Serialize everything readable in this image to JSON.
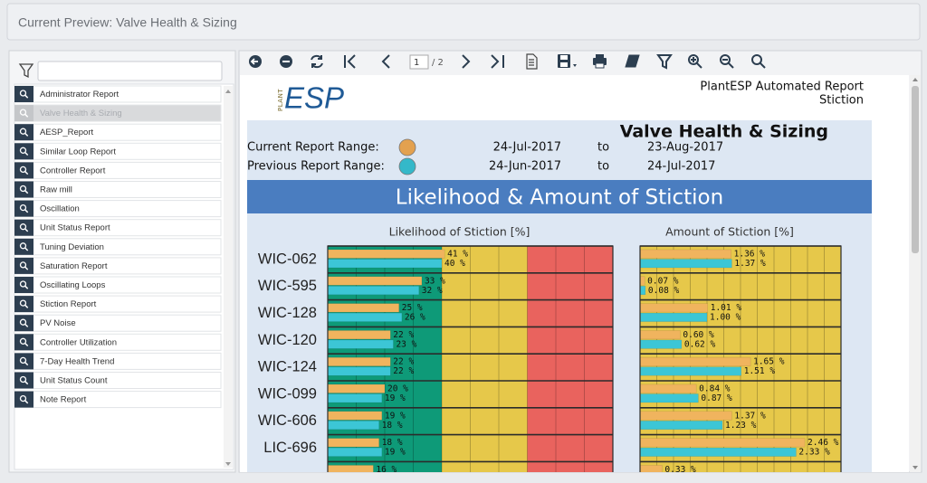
{
  "header": {
    "title": "Current Preview: Valve Health & Sizing"
  },
  "sidebar": {
    "selected": 1,
    "items": [
      "Administrator Report",
      "Valve Health & Sizing",
      "AESP_Report",
      "Similar Loop Report",
      "Controller Report",
      "Raw mill",
      "Oscillation",
      "Unit Status Report",
      "Tuning Deviation",
      "Saturation Report",
      "Oscillating Loops",
      "Stiction Report",
      "PV Noise",
      "Controller Utilization",
      "7-Day Health Trend",
      "Unit Status Count",
      "Note Report"
    ]
  },
  "toolbar": {
    "page": "1",
    "page_total": "/ 2"
  },
  "report": {
    "logo_small": "PLANT",
    "logo": "ESP",
    "header_lines": [
      "PlantESP Automated Report",
      "Stiction"
    ],
    "title": "Valve Health & Sizing",
    "ranges": [
      {
        "label": "Current Report Range:",
        "color": "#e3a14f",
        "start": "24-Jul-2017",
        "to": "to",
        "end": "23-Aug-2017"
      },
      {
        "label": "Previous Report Range:",
        "color": "#34b8c9",
        "start": "24-Jun-2017",
        "to": "to",
        "end": "24-Jul-2017"
      }
    ],
    "section_title": "Likelihood & Amount of Stiction"
  },
  "chart_data": [
    {
      "type": "bar",
      "orientation": "horizontal",
      "title": "Likelihood of Stiction [%]",
      "categories": [
        "WIC-062",
        "WIC-595",
        "WIC-128",
        "WIC-120",
        "WIC-124",
        "WIC-099",
        "WIC-606",
        "LIC-696",
        null
      ],
      "series": [
        {
          "color": "#f0b45e",
          "values": [
            41,
            33,
            25,
            22,
            22,
            20,
            19,
            18,
            16
          ],
          "value_labels": [
            "41 %",
            "33 %",
            "25 %",
            "22 %",
            "22 %",
            "20 %",
            "19 %",
            "18 %",
            "16 %"
          ]
        },
        {
          "color": "#3cc6d6",
          "values": [
            40,
            32,
            26,
            23,
            22,
            19,
            18,
            19,
            null
          ],
          "value_labels": [
            "40 %",
            "32 %",
            "26 %",
            "23 %",
            "22 %",
            "19 %",
            "18 %",
            "19 %",
            null
          ]
        }
      ],
      "xlim": [
        0,
        100
      ],
      "xticks": [
        0,
        10,
        20,
        30,
        40,
        50,
        60,
        70,
        80,
        90,
        100
      ],
      "zones": [
        {
          "from": 0,
          "to": 40,
          "color": "#0e9a78"
        },
        {
          "from": 40,
          "to": 70,
          "color": "#e6c84a"
        },
        {
          "from": 70,
          "to": 100,
          "color": "#e9635e"
        }
      ]
    },
    {
      "type": "bar",
      "orientation": "horizontal",
      "title": "Amount of Stiction [%]",
      "series": [
        {
          "color": "#f0b45e",
          "values": [
            1.36,
            0.07,
            1.01,
            0.6,
            1.65,
            0.84,
            1.37,
            2.46,
            0.33
          ],
          "value_labels": [
            "1.36 %",
            "0.07 %",
            "1.01 %",
            "0.60 %",
            "1.65 %",
            "0.84 %",
            "1.37 %",
            "2.46 %",
            "0.33 %"
          ]
        },
        {
          "color": "#3cc6d6",
          "values": [
            1.37,
            0.08,
            1.0,
            0.62,
            1.51,
            0.87,
            1.23,
            2.33,
            null
          ],
          "value_labels": [
            "1.37 %",
            "0.08 %",
            "1.00 %",
            "0.62 %",
            "1.51 %",
            "0.87 %",
            "1.23 %",
            "2.33 %",
            null
          ]
        }
      ],
      "xlim": [
        0,
        3
      ],
      "xticks": [
        0,
        0.25,
        0.5,
        0.75,
        1,
        1.25,
        1.5,
        1.75,
        2,
        2.25,
        2.5,
        2.75,
        3
      ],
      "zones": [
        {
          "from": 0,
          "to": 3,
          "color": "#e6c84a"
        }
      ]
    }
  ]
}
